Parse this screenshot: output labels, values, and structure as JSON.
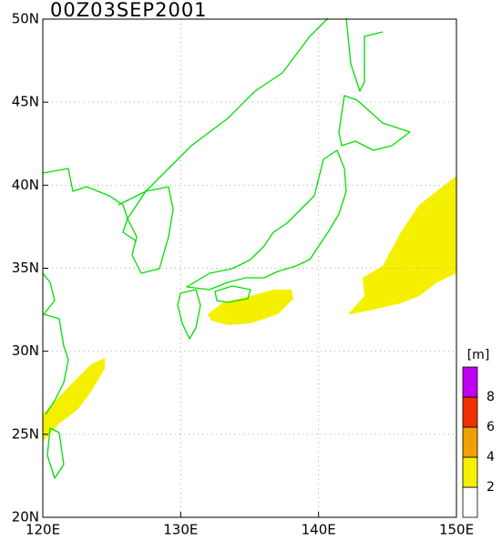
{
  "title": "00Z03SEP2001",
  "map": {
    "lon_range": [
      120,
      150
    ],
    "lat_range": [
      20,
      50
    ],
    "lon_ticks": [
      {
        "value": 120,
        "label": "120E"
      },
      {
        "value": 130,
        "label": "130E"
      },
      {
        "value": 140,
        "label": "140E"
      },
      {
        "value": 150,
        "label": "150E"
      }
    ],
    "lat_ticks": [
      {
        "value": 20,
        "label": "20N"
      },
      {
        "value": 25,
        "label": "25N"
      },
      {
        "value": 30,
        "label": "30N"
      },
      {
        "value": 35,
        "label": "35N"
      },
      {
        "value": 40,
        "label": "40N"
      },
      {
        "value": 45,
        "label": "45N"
      },
      {
        "value": 50,
        "label": "50N"
      }
    ]
  },
  "colorbar": {
    "unit": "[m]",
    "levels": [
      2,
      4,
      6,
      8
    ],
    "colors": [
      "#ffffff",
      "#f5f000",
      "#f0a000",
      "#f03000",
      "#c000f0"
    ]
  }
}
